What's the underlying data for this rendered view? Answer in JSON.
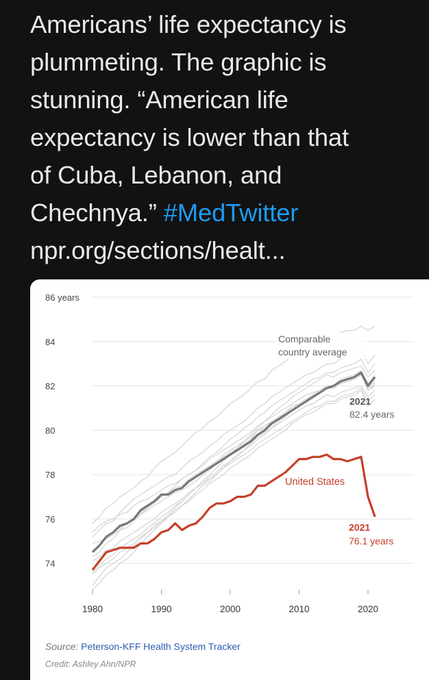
{
  "tweet": {
    "lines": [
      "Americans’ life expectancy is",
      "plummeting. The graphic is",
      "stunning. “American life",
      "expectancy is lower than that",
      "of Cuba, Lebanon, and"
    ],
    "line6_text": "Chechnya.” ",
    "hashtag": "#MedTwitter",
    "link": "npr.org/sections/healt..."
  },
  "chart_data": {
    "type": "line",
    "ylim": [
      73,
      86
    ],
    "xlim": [
      1980,
      2021
    ],
    "y_ticks": [
      {
        "value": 86,
        "label": "86 years"
      },
      {
        "value": 84,
        "label": "84"
      },
      {
        "value": 82,
        "label": "82"
      },
      {
        "value": 80,
        "label": "80"
      },
      {
        "value": 78,
        "label": "78"
      },
      {
        "value": 76,
        "label": "76"
      },
      {
        "value": 74,
        "label": "74"
      }
    ],
    "x_ticks": [
      1980,
      1990,
      2000,
      2010,
      2020
    ],
    "series": [
      {
        "name": "Comparable country average",
        "color": "#777777",
        "x": [
          1980,
          1981,
          1982,
          1983,
          1984,
          1985,
          1986,
          1987,
          1988,
          1989,
          1990,
          1991,
          1992,
          1993,
          1994,
          1995,
          1996,
          1997,
          1998,
          1999,
          2000,
          2001,
          2002,
          2003,
          2004,
          2005,
          2006,
          2007,
          2008,
          2009,
          2010,
          2011,
          2012,
          2013,
          2014,
          2015,
          2016,
          2017,
          2018,
          2019,
          2020,
          2021
        ],
        "values": [
          74.5,
          74.8,
          75.2,
          75.4,
          75.7,
          75.8,
          76.0,
          76.4,
          76.6,
          76.8,
          77.1,
          77.1,
          77.3,
          77.4,
          77.7,
          77.9,
          78.1,
          78.3,
          78.5,
          78.7,
          78.9,
          79.1,
          79.3,
          79.5,
          79.8,
          80.0,
          80.3,
          80.5,
          80.7,
          80.9,
          81.1,
          81.3,
          81.5,
          81.7,
          81.9,
          82.0,
          82.2,
          82.3,
          82.4,
          82.6,
          82.0,
          82.4
        ]
      },
      {
        "name": "United States",
        "color": "#c5402a",
        "x": [
          1980,
          1981,
          1982,
          1983,
          1984,
          1985,
          1986,
          1987,
          1988,
          1989,
          1990,
          1991,
          1992,
          1993,
          1994,
          1995,
          1996,
          1997,
          1998,
          1999,
          2000,
          2001,
          2002,
          2003,
          2004,
          2005,
          2006,
          2007,
          2008,
          2009,
          2010,
          2011,
          2012,
          2013,
          2014,
          2015,
          2016,
          2017,
          2018,
          2019,
          2020,
          2021
        ],
        "values": [
          73.7,
          74.1,
          74.5,
          74.6,
          74.7,
          74.7,
          74.7,
          74.9,
          74.9,
          75.1,
          75.4,
          75.5,
          75.8,
          75.5,
          75.7,
          75.8,
          76.1,
          76.5,
          76.7,
          76.7,
          76.8,
          77.0,
          77.0,
          77.1,
          77.5,
          77.5,
          77.7,
          77.9,
          78.1,
          78.4,
          78.7,
          78.7,
          78.8,
          78.8,
          78.9,
          78.7,
          78.7,
          78.6,
          78.7,
          78.8,
          77.0,
          76.1
        ]
      }
    ],
    "comparison_countries": [
      [
        75.8,
        76.1,
        76.5,
        76.7,
        77.0,
        77.2,
        77.4,
        77.7,
        77.9,
        78.3,
        78.6,
        78.8,
        79.0,
        79.3,
        79.6,
        79.9,
        80.1,
        80.4,
        80.6,
        80.9,
        81.2,
        81.4,
        81.6,
        81.9,
        82.2,
        82.3,
        82.7,
        82.9,
        83.1,
        83.4,
        83.5,
        83.7,
        83.9,
        84.0,
        84.2,
        84.2,
        84.4,
        84.5,
        84.5,
        84.7,
        84.5,
        84.7
      ],
      [
        75.2,
        75.5,
        75.8,
        75.9,
        76.3,
        76.6,
        76.9,
        77.1,
        77.3,
        77.5,
        77.7,
        77.9,
        78.0,
        78.3,
        78.6,
        78.8,
        79.0,
        79.3,
        79.5,
        79.8,
        80.0,
        80.2,
        80.4,
        80.7,
        81.0,
        81.2,
        81.5,
        81.7,
        81.9,
        82.1,
        82.3,
        82.5,
        82.6,
        82.8,
        83.0,
        83.0,
        83.2,
        83.3,
        83.4,
        83.6,
        83.0,
        83.4
      ],
      [
        74.3,
        74.5,
        74.9,
        75.1,
        75.5,
        75.6,
        75.9,
        76.2,
        76.4,
        76.6,
        76.8,
        77.0,
        77.2,
        77.3,
        77.5,
        77.7,
        78.0,
        78.2,
        78.5,
        78.8,
        79.0,
        79.2,
        79.4,
        79.6,
        80.0,
        80.1,
        80.4,
        80.6,
        80.8,
        81.1,
        81.2,
        81.4,
        81.6,
        81.8,
        82.0,
        82.0,
        82.3,
        82.4,
        82.5,
        82.7,
        82.1,
        82.5
      ],
      [
        73.6,
        73.9,
        74.2,
        74.4,
        74.7,
        74.9,
        75.1,
        75.3,
        75.6,
        75.8,
        76.1,
        76.3,
        76.6,
        76.8,
        77.1,
        77.4,
        77.6,
        77.9,
        78.1,
        78.4,
        78.6,
        78.9,
        79.1,
        79.4,
        79.7,
        79.9,
        80.1,
        80.4,
        80.6,
        80.9,
        81.1,
        81.3,
        81.5,
        81.7,
        81.9,
        81.9,
        82.1,
        82.2,
        82.3,
        82.5,
        81.8,
        82.0
      ],
      [
        74.9,
        75.0,
        75.1,
        75.4,
        75.6,
        75.8,
        76.0,
        76.3,
        76.5,
        76.7,
        77.0,
        77.2,
        77.4,
        77.5,
        77.8,
        78.0,
        78.2,
        78.4,
        78.6,
        78.9,
        79.1,
        79.3,
        79.5,
        79.7,
        80.0,
        80.2,
        80.4,
        80.6,
        80.8,
        81.0,
        81.2,
        81.4,
        81.5,
        81.7,
        81.9,
        81.9,
        82.1,
        82.2,
        82.3,
        82.5,
        81.9,
        82.2
      ],
      [
        73.0,
        73.4,
        73.8,
        74.0,
        74.2,
        74.5,
        74.8,
        75.1,
        75.4,
        75.6,
        75.9,
        76.2,
        76.5,
        76.8,
        77.1,
        77.4,
        77.7,
        78.0,
        78.3,
        78.6,
        78.9,
        79.2,
        79.5,
        79.8,
        80.1,
        80.4,
        80.7,
        81.0,
        81.2,
        81.5,
        81.7,
        81.9,
        82.1,
        82.3,
        82.5,
        82.4,
        82.6,
        82.7,
        82.8,
        82.9,
        82.4,
        82.7
      ],
      [
        74.1,
        74.3,
        74.6,
        74.7,
        75.0,
        75.2,
        75.4,
        75.6,
        75.8,
        76.0,
        76.3,
        76.5,
        76.7,
        76.9,
        77.2,
        77.4,
        77.6,
        77.8,
        78.0,
        78.3,
        78.5,
        78.7,
        78.9,
        79.1,
        79.4,
        79.6,
        79.8,
        80.0,
        80.2,
        80.4,
        80.6,
        80.8,
        81.0,
        81.1,
        81.3,
        81.3,
        81.5,
        81.6,
        81.7,
        81.9,
        81.3,
        81.6
      ],
      [
        72.8,
        73.1,
        73.5,
        73.7,
        74.0,
        74.2,
        74.5,
        74.9,
        75.2,
        75.5,
        75.8,
        76.1,
        76.4,
        76.6,
        76.9,
        77.2,
        77.5,
        77.7,
        78.0,
        78.3,
        78.6,
        78.8,
        79.1,
        79.3,
        79.6,
        79.8,
        80.1,
        80.3,
        80.5,
        80.7,
        80.9,
        81.1,
        81.2,
        81.4,
        81.6,
        81.5,
        81.7,
        81.8,
        81.9,
        82.0,
        81.5,
        81.8
      ],
      [
        73.5,
        73.8,
        74.0,
        74.2,
        74.5,
        74.7,
        74.9,
        75.2,
        75.4,
        75.7,
        75.9,
        76.1,
        76.3,
        76.6,
        76.8,
        77.1,
        77.3,
        77.6,
        77.8,
        78.0,
        78.3,
        78.5,
        78.7,
        78.9,
        79.2,
        79.4,
        79.6,
        79.8,
        80.0,
        80.3,
        80.5,
        80.7,
        80.8,
        81.0,
        81.2,
        81.2,
        81.4,
        81.5,
        81.6,
        81.8,
        81.1,
        81.4
      ],
      [
        74.6,
        74.8,
        75.1,
        75.3,
        75.5,
        75.8,
        76.0,
        76.2,
        76.5,
        76.8,
        77.0,
        77.2,
        77.5,
        77.8,
        78.0,
        78.2,
        78.5,
        78.8,
        79.0,
        79.3,
        79.6,
        79.8,
        80.1,
        80.3,
        80.6,
        80.8,
        81.1,
        81.3,
        81.5,
        81.7,
        81.9,
        82.1,
        82.3,
        82.4,
        82.6,
        82.6,
        82.8,
        82.9,
        83.0,
        83.2,
        82.6,
        83.0
      ],
      [
        75.4,
        75.7,
        75.9,
        76.0,
        76.2,
        76.3,
        76.6,
        76.8,
        76.9,
        77.1,
        77.3,
        77.5,
        77.6,
        77.8,
        78.0,
        78.2,
        78.4,
        78.7,
        78.9,
        79.1,
        79.3,
        79.5,
        79.7,
        79.9,
        80.2,
        80.4,
        80.6,
        80.8,
        81.0,
        81.2,
        81.4,
        81.6,
        81.7,
        81.8,
        82.0,
        82.0,
        82.2,
        82.3,
        82.3,
        82.5,
        81.8,
        82.1
      ]
    ],
    "annotations": {
      "comparable_label_1": "Comparable",
      "comparable_label_2": "country average",
      "avg_year": "2021",
      "avg_value": "82.4 years",
      "us_label": "United States",
      "us_year": "2021",
      "us_value": "76.1 years"
    },
    "source_label": "Source:",
    "source_name": "Peterson-KFF Health System Tracker",
    "credit": "Credit: Ashley Ahn/NPR",
    "grid": true
  }
}
